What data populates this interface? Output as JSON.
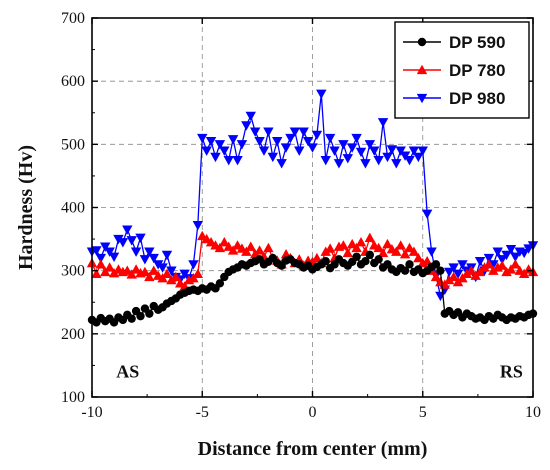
{
  "chart_data": {
    "type": "line",
    "title": "",
    "xlabel": "Distance from center (mm)",
    "ylabel": "Hardness (Hv)",
    "xlim": [
      -10,
      10
    ],
    "ylim": [
      100,
      700
    ],
    "xticks": [
      -10,
      -5,
      0,
      5,
      10
    ],
    "xtick_labels": [
      "-10",
      "-5",
      "0",
      "5",
      "10"
    ],
    "yticks": [
      100,
      200,
      300,
      400,
      500,
      600,
      700
    ],
    "ytick_labels": [
      "100",
      "200",
      "300",
      "400",
      "500",
      "600",
      "700"
    ],
    "grid": true,
    "legend_position": "top-right",
    "annotations": [
      {
        "text": "AS",
        "x": -8.9,
        "y": 140
      },
      {
        "text": "RS",
        "x": 8.5,
        "y": 140
      }
    ],
    "series": [
      {
        "name": "DP 590",
        "color": "#000000",
        "marker": "circle",
        "x": [
          -10.0,
          -9.8,
          -9.6,
          -9.4,
          -9.2,
          -9.0,
          -8.8,
          -8.6,
          -8.4,
          -8.2,
          -8.0,
          -7.8,
          -7.6,
          -7.4,
          -7.2,
          -7.0,
          -6.8,
          -6.6,
          -6.4,
          -6.2,
          -6.0,
          -5.8,
          -5.6,
          -5.4,
          -5.2,
          -5.0,
          -4.8,
          -4.6,
          -4.4,
          -4.2,
          -4.0,
          -3.8,
          -3.6,
          -3.4,
          -3.2,
          -3.0,
          -2.8,
          -2.6,
          -2.4,
          -2.2,
          -2.0,
          -1.8,
          -1.6,
          -1.4,
          -1.2,
          -1.0,
          -0.8,
          -0.6,
          -0.4,
          -0.2,
          0.0,
          0.2,
          0.4,
          0.6,
          0.8,
          1.0,
          1.2,
          1.4,
          1.6,
          1.8,
          2.0,
          2.2,
          2.4,
          2.6,
          2.8,
          3.0,
          3.2,
          3.4,
          3.6,
          3.8,
          4.0,
          4.2,
          4.4,
          4.6,
          4.8,
          5.0,
          5.2,
          5.4,
          5.6,
          5.8,
          6.0,
          6.2,
          6.4,
          6.6,
          6.8,
          7.0,
          7.2,
          7.4,
          7.6,
          7.8,
          8.0,
          8.2,
          8.4,
          8.6,
          8.8,
          9.0,
          9.2,
          9.4,
          9.6,
          9.8,
          10.0
        ],
        "y": [
          222,
          218,
          225,
          220,
          224,
          218,
          226,
          222,
          230,
          224,
          236,
          228,
          240,
          232,
          244,
          238,
          242,
          248,
          252,
          256,
          262,
          265,
          268,
          270,
          268,
          272,
          270,
          275,
          272,
          280,
          290,
          298,
          302,
          305,
          310,
          308,
          312,
          315,
          318,
          310,
          314,
          320,
          312,
          308,
          316,
          318,
          312,
          310,
          305,
          308,
          302,
          306,
          310,
          315,
          304,
          310,
          318,
          312,
          308,
          314,
          322,
          310,
          315,
          325,
          312,
          318,
          305,
          310,
          302,
          298,
          304,
          300,
          310,
          298,
          302,
          296,
          300,
          306,
          310,
          300,
          232,
          236,
          230,
          234,
          226,
          232,
          228,
          224,
          226,
          222,
          228,
          224,
          230,
          226,
          222,
          226,
          224,
          228,
          226,
          230,
          232
        ]
      },
      {
        "name": "DP 780",
        "color": "#ff0000",
        "marker": "triangle-up",
        "x": [
          -10.0,
          -9.8,
          -9.6,
          -9.4,
          -9.2,
          -9.0,
          -8.8,
          -8.6,
          -8.4,
          -8.2,
          -8.0,
          -7.8,
          -7.6,
          -7.4,
          -7.2,
          -7.0,
          -6.8,
          -6.6,
          -6.4,
          -6.2,
          -6.0,
          -5.8,
          -5.6,
          -5.4,
          -5.2,
          -5.0,
          -4.8,
          -4.6,
          -4.4,
          -4.2,
          -4.0,
          -3.8,
          -3.6,
          -3.4,
          -3.2,
          -3.0,
          -2.8,
          -2.6,
          -2.4,
          -2.2,
          -2.0,
          -1.8,
          -1.6,
          -1.4,
          -1.2,
          -1.0,
          -0.8,
          -0.6,
          -0.4,
          -0.2,
          0.0,
          0.2,
          0.4,
          0.6,
          0.8,
          1.0,
          1.2,
          1.4,
          1.6,
          1.8,
          2.0,
          2.2,
          2.4,
          2.6,
          2.8,
          3.0,
          3.2,
          3.4,
          3.6,
          3.8,
          4.0,
          4.2,
          4.4,
          4.6,
          4.8,
          5.0,
          5.2,
          5.4,
          5.6,
          5.8,
          6.0,
          6.2,
          6.4,
          6.6,
          6.8,
          7.0,
          7.2,
          7.4,
          7.6,
          7.8,
          8.0,
          8.2,
          8.4,
          8.6,
          8.8,
          9.0,
          9.2,
          9.4,
          9.6,
          9.8,
          10.0
        ],
        "y": [
          312,
          295,
          310,
          298,
          305,
          296,
          302,
          298,
          300,
          294,
          302,
          296,
          298,
          290,
          300,
          292,
          288,
          295,
          285,
          290,
          280,
          275,
          285,
          288,
          295,
          355,
          350,
          345,
          340,
          336,
          345,
          338,
          332,
          340,
          335,
          330,
          338,
          326,
          332,
          322,
          336,
          320,
          316,
          310,
          326,
          320,
          312,
          318,
          308,
          316,
          314,
          320,
          312,
          330,
          335,
          320,
          338,
          340,
          328,
          342,
          336,
          345,
          330,
          352,
          340,
          336,
          328,
          342,
          334,
          330,
          340,
          326,
          336,
          330,
          320,
          312,
          315,
          300,
          290,
          282,
          278,
          285,
          290,
          282,
          288,
          295,
          300,
          292,
          298,
          305,
          310,
          300,
          305,
          308,
          298,
          302,
          310,
          300,
          295,
          302,
          298
        ]
      },
      {
        "name": "DP 980",
        "color": "#0000ff",
        "marker": "triangle-down",
        "x": [
          -10.0,
          -9.8,
          -9.6,
          -9.4,
          -9.2,
          -9.0,
          -8.8,
          -8.6,
          -8.4,
          -8.2,
          -8.0,
          -7.8,
          -7.6,
          -7.4,
          -7.2,
          -7.0,
          -6.8,
          -6.6,
          -6.4,
          -6.2,
          -6.0,
          -5.8,
          -5.6,
          -5.4,
          -5.2,
          -5.0,
          -4.8,
          -4.6,
          -4.4,
          -4.2,
          -4.0,
          -3.8,
          -3.6,
          -3.4,
          -3.2,
          -3.0,
          -2.8,
          -2.6,
          -2.4,
          -2.2,
          -2.0,
          -1.8,
          -1.6,
          -1.4,
          -1.2,
          -1.0,
          -0.8,
          -0.6,
          -0.4,
          -0.2,
          0.0,
          0.2,
          0.4,
          0.6,
          0.8,
          1.0,
          1.2,
          1.4,
          1.6,
          1.8,
          2.0,
          2.2,
          2.4,
          2.6,
          2.8,
          3.0,
          3.2,
          3.4,
          3.6,
          3.8,
          4.0,
          4.2,
          4.4,
          4.6,
          4.8,
          5.0,
          5.2,
          5.4,
          5.6,
          5.8,
          6.0,
          6.2,
          6.4,
          6.6,
          6.8,
          7.0,
          7.2,
          7.4,
          7.6,
          7.8,
          8.0,
          8.2,
          8.4,
          8.6,
          8.8,
          9.0,
          9.2,
          9.4,
          9.6,
          9.8,
          10.0
        ],
        "y": [
          330,
          332,
          320,
          338,
          330,
          322,
          350,
          345,
          365,
          348,
          330,
          352,
          318,
          330,
          320,
          310,
          305,
          325,
          300,
          290,
          286,
          295,
          288,
          310,
          372,
          510,
          490,
          505,
          480,
          500,
          490,
          475,
          508,
          475,
          500,
          530,
          545,
          520,
          505,
          490,
          520,
          480,
          505,
          470,
          495,
          510,
          520,
          490,
          520,
          505,
          495,
          515,
          580,
          475,
          510,
          490,
          470,
          500,
          478,
          495,
          510,
          488,
          470,
          500,
          490,
          475,
          535,
          480,
          492,
          470,
          490,
          482,
          475,
          490,
          480,
          490,
          390,
          330,
          292,
          260,
          270,
          298,
          305,
          295,
          310,
          300,
          305,
          290,
          315,
          300,
          320,
          310,
          330,
          318,
          325,
          334,
          322,
          330,
          328,
          335,
          340
        ]
      }
    ]
  }
}
